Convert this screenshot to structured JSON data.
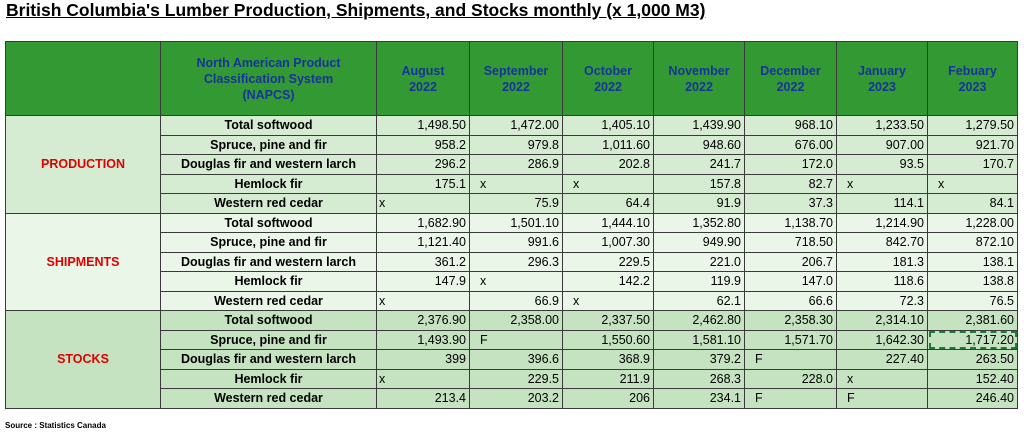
{
  "title": "British Columbia's Lumber Production, Shipments, and Stocks monthly (x 1,000 M3)",
  "header": {
    "napcs_lines": [
      "North American Product",
      "Classification System",
      "(NAPCS)"
    ],
    "months": [
      {
        "line1": "August",
        "line2": "2022"
      },
      {
        "line1": "September",
        "line2": "2022"
      },
      {
        "line1": "October",
        "line2": "2022"
      },
      {
        "line1": "November",
        "line2": "2022"
      },
      {
        "line1": "December",
        "line2": "2022"
      },
      {
        "line1": "January",
        "line2": "2023"
      },
      {
        "line1": "Febuary",
        "line2": "2023"
      }
    ]
  },
  "groups": [
    {
      "name": "PRODUCTION",
      "rows": [
        {
          "label": "Total softwood",
          "values": [
            "1,498.50",
            "1,472.00",
            "1,405.10",
            "1,439.90",
            "968.10",
            "1,233.50",
            "1,279.50"
          ]
        },
        {
          "label": "Spruce, pine and fir",
          "values": [
            "958.2",
            "979.8",
            "1,011.60",
            "948.60",
            "676.00",
            "907.00",
            "921.70"
          ]
        },
        {
          "label": "Douglas fir and western larch",
          "values": [
            "296.2",
            "286.9",
            "202.8",
            "241.7",
            "172.0",
            "93.5",
            "170.7"
          ]
        },
        {
          "label": "Hemlock fir",
          "values": [
            "175.1",
            "x",
            "x",
            "157.8",
            "82.7",
            "x",
            "x"
          ]
        },
        {
          "label": "Western red cedar",
          "values": [
            "x",
            "75.9",
            "64.4",
            "91.9",
            "37.3",
            "114.1",
            "84.1"
          ]
        }
      ]
    },
    {
      "name": "SHIPMENTS",
      "rows": [
        {
          "label": "Total softwood",
          "values": [
            "1,682.90",
            "1,501.10",
            "1,444.10",
            "1,352.80",
            "1,138.70",
            "1,214.90",
            "1,228.00"
          ]
        },
        {
          "label": "Spruce, pine and fir",
          "values": [
            "1,121.40",
            "991.6",
            "1,007.30",
            "949.90",
            "718.50",
            "842.70",
            "872.10"
          ]
        },
        {
          "label": "Douglas fir and western larch",
          "values": [
            "361.2",
            "296.3",
            "229.5",
            "221.0",
            "206.7",
            "181.3",
            "138.1"
          ]
        },
        {
          "label": "Hemlock fir",
          "values": [
            "147.9",
            "x",
            "142.2",
            "119.9",
            "147.0",
            "118.6",
            "138.8"
          ]
        },
        {
          "label": "Western red cedar",
          "values": [
            "x",
            "66.9",
            "x",
            "62.1",
            "66.6",
            "72.3",
            "76.5"
          ]
        }
      ]
    },
    {
      "name": "STOCKS",
      "rows": [
        {
          "label": "Total softwood",
          "values": [
            "2,376.90",
            "2,358.00",
            "2,337.50",
            "2,462.80",
            "2,358.30",
            "2,314.10",
            "2,381.60"
          ]
        },
        {
          "label": "Spruce, pine and fir",
          "values": [
            "1,493.90",
            "F",
            "1,550.60",
            "1,581.10",
            "1,571.70",
            "1,642.30",
            "1,717.20"
          ]
        },
        {
          "label": "Douglas fir and western larch",
          "values": [
            "399",
            "396.6",
            "368.9",
            "379.2",
            "F",
            "227.40",
            "263.50"
          ]
        },
        {
          "label": "Hemlock fir",
          "values": [
            "x",
            "229.5",
            "211.9",
            "268.3",
            "228.0",
            "x",
            "152.40"
          ]
        },
        {
          "label": "Western red cedar",
          "values": [
            "213.4",
            "203.2",
            "206",
            "234.1",
            "F",
            "F",
            "246.40"
          ]
        }
      ]
    }
  ],
  "source": "Source : Statistics Canada",
  "colors": {
    "header_bg": "#339933",
    "header_text": "#17349a",
    "group_text": "#e00000",
    "production_bg": "#d6ecd2",
    "shipments_bg": "#eaf6e8",
    "stocks_bg": "#c5e3c0"
  }
}
